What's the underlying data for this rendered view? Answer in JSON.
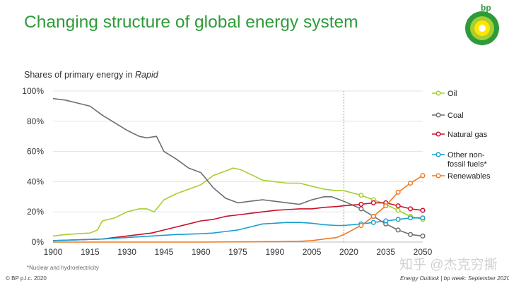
{
  "header": {
    "title": "Changing structure of global energy system",
    "subtitle_prefix": "Shares of primary energy in ",
    "subtitle_scenario": "Rapid",
    "logo_text": "bp"
  },
  "footer": {
    "footnote": "*Nuclear and hydroelectricity",
    "copyright": "© BP p.l.c. 2020",
    "source": "Energy Outlook  |  bp week: September 2020"
  },
  "watermark": "知乎 @杰克穷撕",
  "colors": {
    "oil": "#a6cf2f",
    "coal": "#6e6e6e",
    "natural_gas": "#c8102e",
    "other_non_fossil": "#18a0cf",
    "renewables": "#ee7a24",
    "title": "#2e9b3a"
  },
  "chart_data": {
    "type": "line",
    "title": "Shares of primary energy in Rapid",
    "xlabel": "",
    "ylabel": "",
    "xlim": [
      1900,
      2050
    ],
    "ylim": [
      0,
      100
    ],
    "x_ticks": [
      1900,
      1915,
      1930,
      1945,
      1960,
      1975,
      1990,
      2005,
      2020,
      2035,
      2050
    ],
    "y_ticks": [
      0,
      20,
      40,
      60,
      80,
      100
    ],
    "y_tick_labels": [
      "0%",
      "20%",
      "40%",
      "60%",
      "80%",
      "100%"
    ],
    "projection_start": 2018,
    "marker_years": [
      2025,
      2030,
      2035,
      2040,
      2045,
      2050
    ],
    "legend_position": "right",
    "series": [
      {
        "name": "Oil",
        "color_key": "oil",
        "points": [
          [
            1900,
            4
          ],
          [
            1905,
            5
          ],
          [
            1910,
            5.5
          ],
          [
            1915,
            6
          ],
          [
            1918,
            8
          ],
          [
            1920,
            14
          ],
          [
            1925,
            16
          ],
          [
            1930,
            20
          ],
          [
            1935,
            22
          ],
          [
            1938,
            22
          ],
          [
            1941,
            20
          ],
          [
            1945,
            28
          ],
          [
            1950,
            32
          ],
          [
            1955,
            35
          ],
          [
            1960,
            38
          ],
          [
            1965,
            44
          ],
          [
            1970,
            47
          ],
          [
            1973,
            49
          ],
          [
            1976,
            48
          ],
          [
            1980,
            45
          ],
          [
            1985,
            41
          ],
          [
            1990,
            40
          ],
          [
            1995,
            39
          ],
          [
            2000,
            39
          ],
          [
            2005,
            37
          ],
          [
            2010,
            35
          ],
          [
            2015,
            34
          ],
          [
            2018,
            34
          ],
          [
            2025,
            31
          ],
          [
            2030,
            28
          ],
          [
            2035,
            25
          ],
          [
            2040,
            21
          ],
          [
            2045,
            17
          ],
          [
            2050,
            15
          ]
        ]
      },
      {
        "name": "Coal",
        "color_key": "coal",
        "points": [
          [
            1900,
            95
          ],
          [
            1905,
            94
          ],
          [
            1910,
            92
          ],
          [
            1915,
            90
          ],
          [
            1920,
            84
          ],
          [
            1925,
            79
          ],
          [
            1930,
            74
          ],
          [
            1935,
            70
          ],
          [
            1938,
            69
          ],
          [
            1942,
            70
          ],
          [
            1945,
            60
          ],
          [
            1950,
            55
          ],
          [
            1955,
            49
          ],
          [
            1960,
            46
          ],
          [
            1962,
            42
          ],
          [
            1965,
            36
          ],
          [
            1970,
            29
          ],
          [
            1975,
            26
          ],
          [
            1980,
            27
          ],
          [
            1985,
            28
          ],
          [
            1990,
            27
          ],
          [
            1995,
            26
          ],
          [
            2000,
            25
          ],
          [
            2005,
            28
          ],
          [
            2010,
            30
          ],
          [
            2013,
            30
          ],
          [
            2018,
            27
          ],
          [
            2025,
            22
          ],
          [
            2030,
            17
          ],
          [
            2035,
            12
          ],
          [
            2040,
            8
          ],
          [
            2045,
            5
          ],
          [
            2050,
            4
          ]
        ]
      },
      {
        "name": "Natural gas",
        "color_key": "natural_gas",
        "points": [
          [
            1900,
            1
          ],
          [
            1910,
            1.5
          ],
          [
            1920,
            2
          ],
          [
            1930,
            4
          ],
          [
            1940,
            6
          ],
          [
            1945,
            8
          ],
          [
            1950,
            10
          ],
          [
            1955,
            12
          ],
          [
            1960,
            14
          ],
          [
            1965,
            15
          ],
          [
            1970,
            17
          ],
          [
            1975,
            18
          ],
          [
            1980,
            19
          ],
          [
            1985,
            20
          ],
          [
            1990,
            21
          ],
          [
            1995,
            21.5
          ],
          [
            2000,
            22
          ],
          [
            2005,
            22
          ],
          [
            2010,
            23
          ],
          [
            2015,
            23.5
          ],
          [
            2018,
            24
          ],
          [
            2025,
            25
          ],
          [
            2030,
            26
          ],
          [
            2035,
            26
          ],
          [
            2040,
            24
          ],
          [
            2045,
            22
          ],
          [
            2050,
            21
          ]
        ]
      },
      {
        "name": "Other non-fossil fuels*",
        "color_key": "other_non_fossil",
        "points": [
          [
            1900,
            1
          ],
          [
            1910,
            1.5
          ],
          [
            1920,
            2
          ],
          [
            1930,
            3
          ],
          [
            1940,
            4
          ],
          [
            1950,
            5
          ],
          [
            1960,
            5.5
          ],
          [
            1965,
            6
          ],
          [
            1970,
            7
          ],
          [
            1975,
            8
          ],
          [
            1980,
            10
          ],
          [
            1985,
            12
          ],
          [
            1990,
            12.5
          ],
          [
            1995,
            13
          ],
          [
            2000,
            13
          ],
          [
            2005,
            12.5
          ],
          [
            2010,
            11.5
          ],
          [
            2015,
            11
          ],
          [
            2018,
            11
          ],
          [
            2025,
            12
          ],
          [
            2030,
            13
          ],
          [
            2035,
            14
          ],
          [
            2040,
            15
          ],
          [
            2045,
            16
          ],
          [
            2050,
            16
          ]
        ]
      },
      {
        "name": "Renewables",
        "color_key": "renewables",
        "points": [
          [
            1900,
            0
          ],
          [
            1960,
            0
          ],
          [
            1990,
            0.3
          ],
          [
            2000,
            0.5
          ],
          [
            2005,
            1
          ],
          [
            2010,
            2
          ],
          [
            2015,
            3
          ],
          [
            2018,
            5
          ],
          [
            2025,
            11
          ],
          [
            2030,
            17
          ],
          [
            2035,
            24
          ],
          [
            2040,
            33
          ],
          [
            2045,
            39
          ],
          [
            2050,
            44
          ]
        ]
      }
    ]
  },
  "legend": [
    {
      "label": "Oil",
      "color_key": "oil"
    },
    {
      "label": "Coal",
      "color_key": "coal"
    },
    {
      "label": "Natural gas",
      "color_key": "natural_gas"
    },
    {
      "label_line1": "Other non-",
      "label_line2": "fossil fuels*",
      "color_key": "other_non_fossil"
    },
    {
      "label": "Renewables",
      "color_key": "renewables"
    }
  ]
}
